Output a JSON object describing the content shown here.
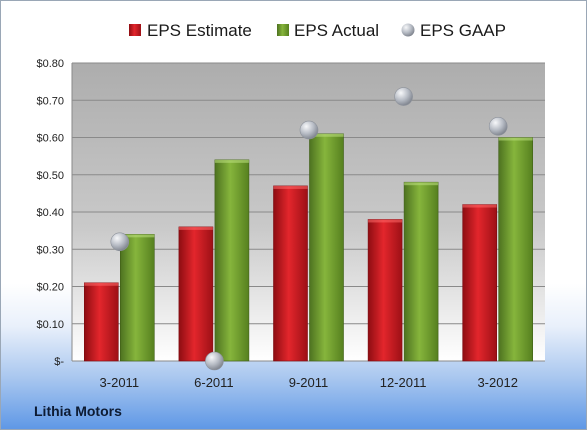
{
  "company": "Lithia Motors",
  "colors": {
    "estimate": "#c8141c",
    "actual": "#6f9c2c",
    "gaap": "#a9aeb8"
  },
  "chart_data": {
    "type": "bar",
    "categories": [
      "3-2011",
      "6-2011",
      "9-2011",
      "12-2011",
      "3-2012"
    ],
    "series": [
      {
        "name": "EPS Estimate",
        "kind": "bar",
        "values": [
          0.21,
          0.36,
          0.47,
          0.38,
          0.42
        ]
      },
      {
        "name": "EPS Actual",
        "kind": "bar",
        "values": [
          0.34,
          0.54,
          0.61,
          0.48,
          0.6
        ]
      },
      {
        "name": "EPS GAAP",
        "kind": "scatter",
        "values": [
          0.32,
          0.0,
          0.62,
          0.71,
          0.63
        ]
      }
    ],
    "ylim": [
      0,
      0.8
    ],
    "yticks": [
      0,
      0.1,
      0.2,
      0.3,
      0.4,
      0.5,
      0.6,
      0.7,
      0.8
    ],
    "ytick_labels": [
      "$-",
      "$0.10",
      "$0.20",
      "$0.30",
      "$0.40",
      "$0.50",
      "$0.60",
      "$0.70",
      "$0.80"
    ],
    "grid": true,
    "legend": "top"
  }
}
